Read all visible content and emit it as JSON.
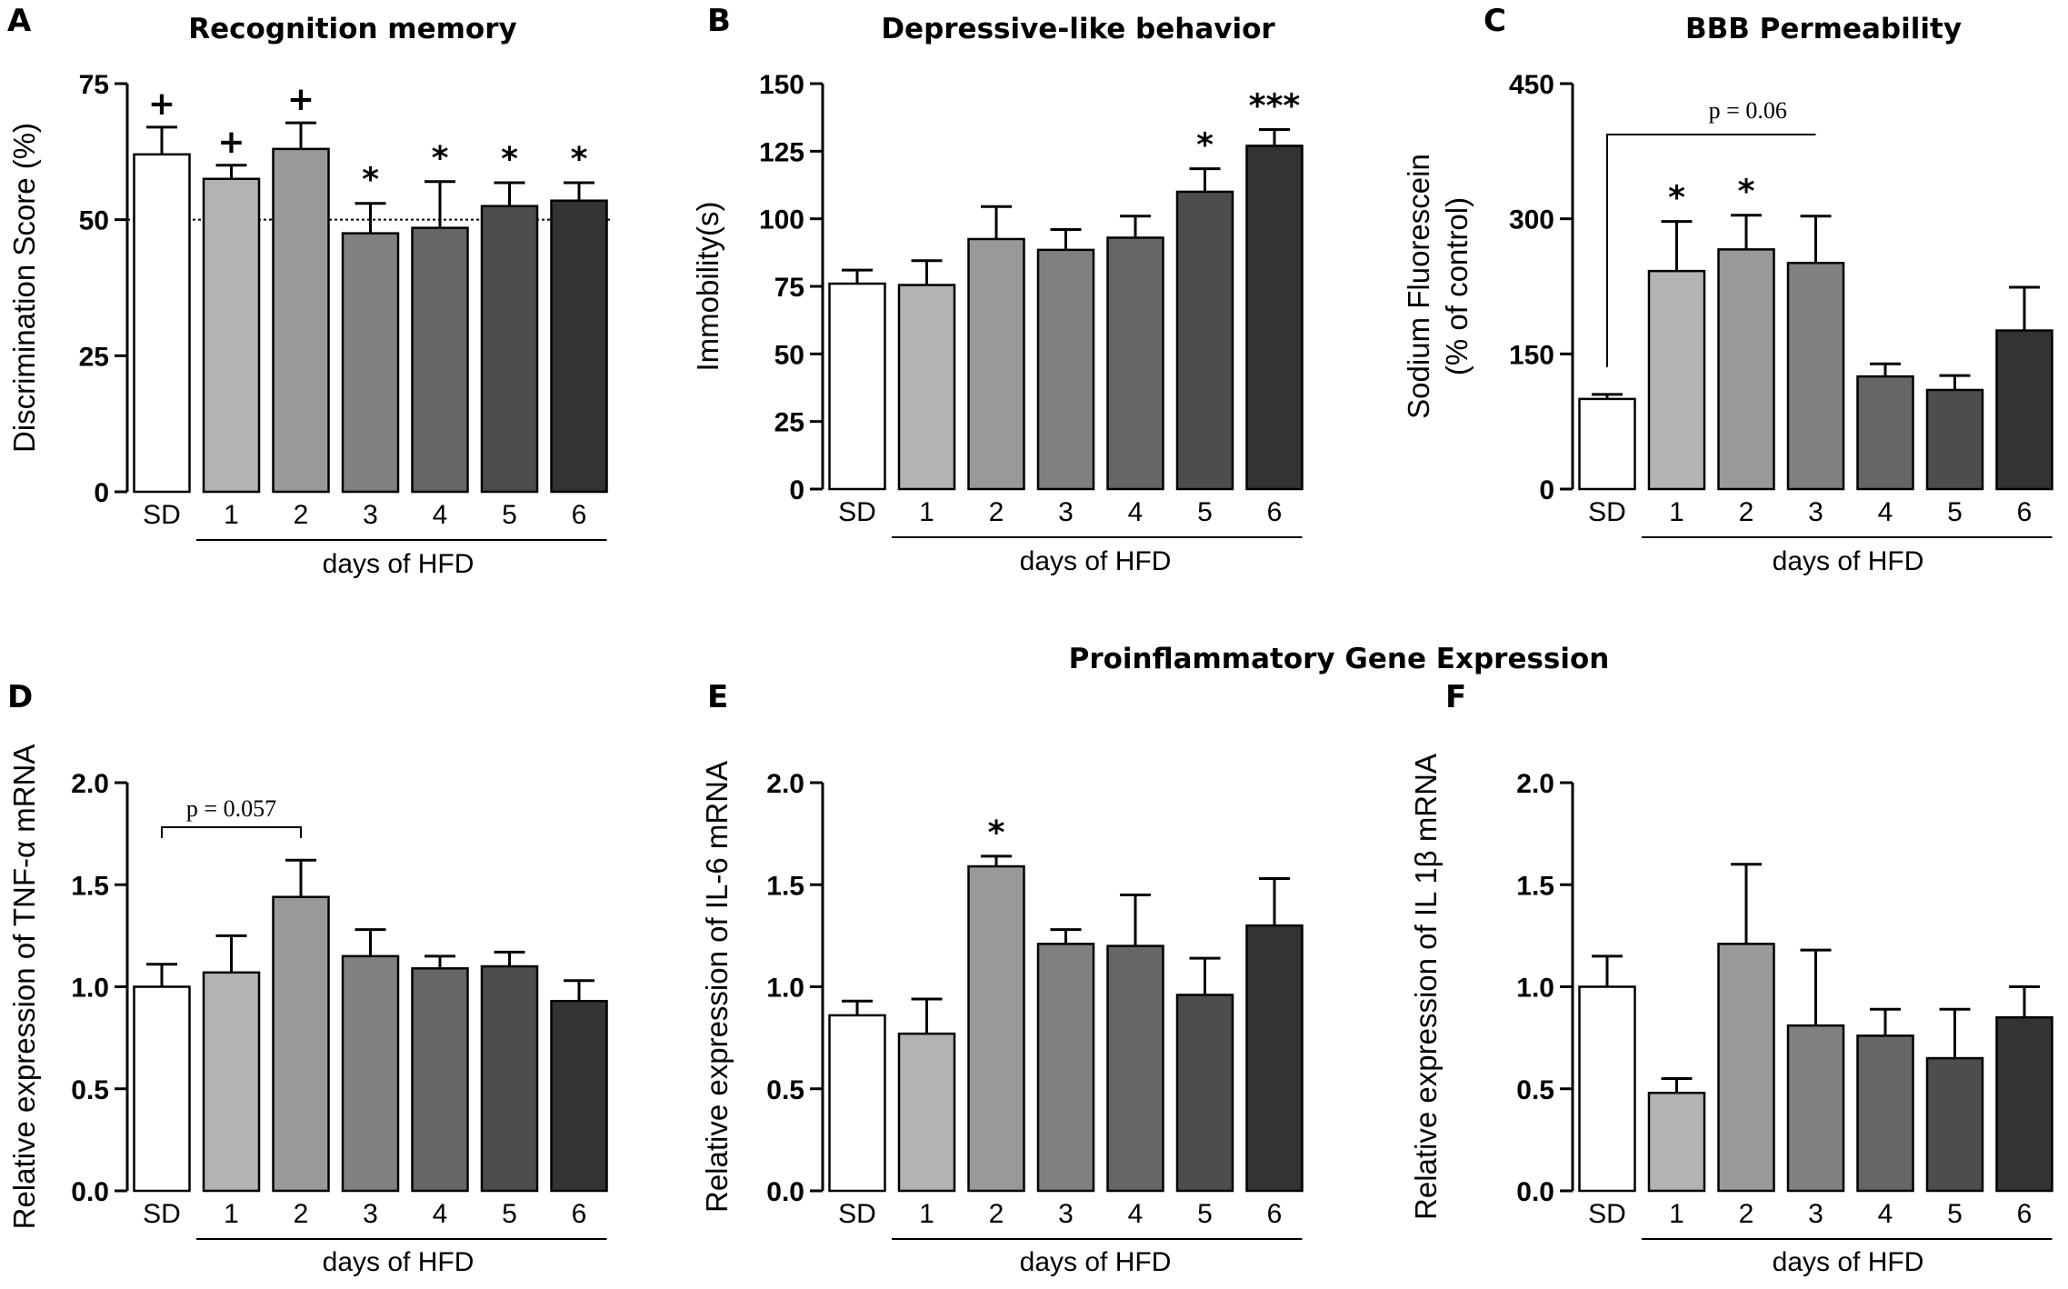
{
  "figure_title": "Proinflammatory Gene Expression",
  "chart_data": [
    {
      "panel": "A",
      "type": "bar",
      "title": "Recognition memory",
      "ylabel": "Discrimination Score (%)",
      "categories": [
        "SD",
        "1",
        "2",
        "3",
        "4",
        "5",
        "6"
      ],
      "group_label": "days of HFD",
      "values": [
        62,
        57.5,
        63,
        47.5,
        48.5,
        52.5,
        53.5
      ],
      "errors": [
        5,
        2.5,
        4.8,
        5.5,
        8.5,
        4.3,
        3.3
      ],
      "significance": [
        "+",
        "+",
        "+",
        "*",
        "*",
        "*",
        "*"
      ],
      "ylim": [
        0,
        75
      ],
      "yticks": [
        "0",
        "25",
        "50",
        "75"
      ],
      "reference_line": 50,
      "bar_colors": [
        "#ffffff",
        "#b3b3b3",
        "#999999",
        "#808080",
        "#666666",
        "#4d4d4d",
        "#333333"
      ]
    },
    {
      "panel": "B",
      "type": "bar",
      "title": "Depressive-like behavior",
      "ylabel": "Immobility(s)",
      "categories": [
        "SD",
        "1",
        "2",
        "3",
        "4",
        "5",
        "6"
      ],
      "group_label": "days of HFD",
      "values": [
        76,
        75.5,
        92.5,
        88.5,
        93,
        110,
        127
      ],
      "errors": [
        5,
        9,
        12,
        7.5,
        8,
        8.5,
        6
      ],
      "significance": [
        "",
        "",
        "",
        "",
        "",
        "*",
        "***"
      ],
      "ylim": [
        0,
        150
      ],
      "yticks": [
        "0",
        "25",
        "50",
        "75",
        "100",
        "125",
        "150"
      ],
      "bar_colors": [
        "#ffffff",
        "#b3b3b3",
        "#999999",
        "#808080",
        "#666666",
        "#4d4d4d",
        "#333333"
      ]
    },
    {
      "panel": "C",
      "type": "bar",
      "title": "BBB Permeability",
      "ylabel": "Sodium Fluorescein",
      "ylabel2": "(% of control)",
      "categories": [
        "SD",
        "1",
        "2",
        "3",
        "4",
        "5",
        "6"
      ],
      "group_label": "days of HFD",
      "values": [
        100,
        242,
        266,
        251,
        125,
        110,
        176
      ],
      "errors": [
        5,
        55,
        38,
        52,
        14,
        16,
        48
      ],
      "significance": [
        "",
        "*",
        "*",
        "",
        "",
        "",
        ""
      ],
      "ylim": [
        0,
        450
      ],
      "yticks": [
        "0",
        "150",
        "300",
        "450"
      ],
      "bracket": {
        "from": 0,
        "to": 3,
        "label": "p = 0.06"
      },
      "bar_colors": [
        "#ffffff",
        "#b3b3b3",
        "#999999",
        "#808080",
        "#666666",
        "#4d4d4d",
        "#333333"
      ]
    },
    {
      "panel": "D",
      "type": "bar",
      "title": "",
      "ylabel": "Relative expression of TNF-α mRNA",
      "categories": [
        "SD",
        "1",
        "2",
        "3",
        "4",
        "5",
        "6"
      ],
      "group_label": "days of HFD",
      "values": [
        1.0,
        1.07,
        1.44,
        1.15,
        1.09,
        1.1,
        0.93
      ],
      "errors": [
        0.11,
        0.18,
        0.18,
        0.13,
        0.06,
        0.07,
        0.1
      ],
      "significance": [
        "",
        "",
        "",
        "",
        "",
        "",
        ""
      ],
      "ylim": [
        0,
        2
      ],
      "yticks": [
        "0.0",
        "0.5",
        "1.0",
        "1.5",
        "2.0"
      ],
      "bracket": {
        "from": 0,
        "to": 2,
        "label": "p = 0.057"
      },
      "bar_colors": [
        "#ffffff",
        "#b3b3b3",
        "#999999",
        "#808080",
        "#666666",
        "#4d4d4d",
        "#333333"
      ]
    },
    {
      "panel": "E",
      "type": "bar",
      "title": "",
      "ylabel": "Relative expression of IL-6 mRNA",
      "categories": [
        "SD",
        "1",
        "2",
        "3",
        "4",
        "5",
        "6"
      ],
      "group_label": "days of HFD",
      "values": [
        0.86,
        0.77,
        1.59,
        1.21,
        1.2,
        0.96,
        1.3
      ],
      "errors": [
        0.07,
        0.17,
        0.05,
        0.07,
        0.25,
        0.18,
        0.23
      ],
      "significance": [
        "",
        "",
        "*",
        "",
        "",
        "",
        ""
      ],
      "ylim": [
        0,
        2
      ],
      "yticks": [
        "0.0",
        "0.5",
        "1.0",
        "1.5",
        "2.0"
      ],
      "bar_colors": [
        "#ffffff",
        "#b3b3b3",
        "#999999",
        "#808080",
        "#666666",
        "#4d4d4d",
        "#333333"
      ]
    },
    {
      "panel": "F",
      "type": "bar",
      "title": "",
      "ylabel": "Relative expression of IL 1β mRNA",
      "categories": [
        "SD",
        "1",
        "2",
        "3",
        "4",
        "5",
        "6"
      ],
      "group_label": "days of HFD",
      "values": [
        1.0,
        0.48,
        1.21,
        0.81,
        0.76,
        0.65,
        0.85
      ],
      "errors": [
        0.15,
        0.07,
        0.39,
        0.37,
        0.13,
        0.24,
        0.15
      ],
      "significance": [
        "",
        "",
        "",
        "",
        "",
        "",
        ""
      ],
      "ylim": [
        0,
        2
      ],
      "yticks": [
        "0.0",
        "0.5",
        "1.0",
        "1.5",
        "2.0"
      ],
      "bar_colors": [
        "#ffffff",
        "#b3b3b3",
        "#999999",
        "#808080",
        "#666666",
        "#4d4d4d",
        "#333333"
      ]
    }
  ]
}
